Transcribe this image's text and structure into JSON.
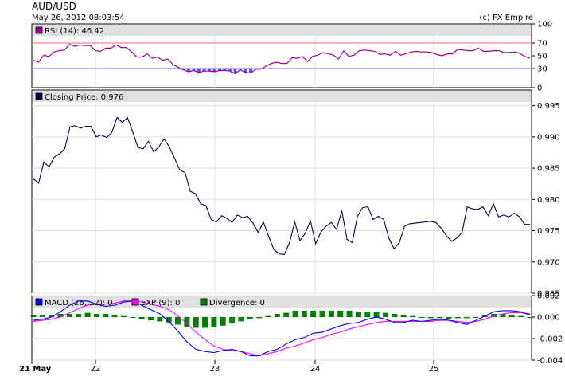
{
  "header": {
    "title": "AUD/USD",
    "timestamp": "May 26, 2012 08:03:54",
    "credit": "(c) FX Empire"
  },
  "colors": {
    "rsi": "#990099",
    "rsi_fill": "#5555ff",
    "level_70": "#ff6666",
    "level_30": "#6666ff",
    "price": "#000044",
    "macd": "#0000ff",
    "exp": "#ff00ff",
    "divergence": "#008000"
  },
  "x_axis": {
    "first_label": "21 May",
    "labels": [
      "22",
      "23",
      "24",
      "25"
    ]
  },
  "chart_data": [
    {
      "type": "line",
      "panel": "rsi",
      "legend": "RSI (14): 46.42",
      "ylim": [
        0,
        100
      ],
      "yticks": [
        "100",
        "70",
        "50",
        "30",
        "0"
      ],
      "levels": [
        70,
        30
      ],
      "series": [
        {
          "name": "RSI (14)",
          "values": [
            43,
            40,
            51,
            49,
            56,
            58,
            59,
            68,
            65,
            67,
            66,
            66,
            58,
            57,
            62,
            62,
            67,
            63,
            63,
            56,
            48,
            48,
            53,
            46,
            48,
            43,
            45,
            36,
            32,
            28,
            25,
            27,
            24,
            26,
            26,
            25,
            27,
            27,
            26,
            22,
            28,
            24,
            23,
            29,
            29,
            34,
            38,
            40,
            38,
            38,
            47,
            46,
            49,
            41,
            49,
            51,
            55,
            53,
            51,
            45,
            58,
            49,
            51,
            58,
            59,
            58,
            57,
            52,
            53,
            51,
            57,
            51,
            53,
            56,
            57,
            56,
            56,
            55,
            52,
            50,
            53,
            53,
            60,
            59,
            58,
            58,
            62,
            57,
            57,
            58,
            58,
            55,
            55,
            56,
            54,
            49,
            46
          ]
        }
      ]
    },
    {
      "type": "line",
      "panel": "price",
      "legend": "Closing Price: 0.976",
      "ylim": [
        0.965,
        0.9975
      ],
      "yticks": [
        "0.995",
        "0.990",
        "0.985",
        "0.980",
        "0.975",
        "0.970",
        "0.965"
      ],
      "series": [
        {
          "name": "Closing Price",
          "values": [
            0.9833,
            0.9826,
            0.986,
            0.9852,
            0.9868,
            0.9873,
            0.9881,
            0.9916,
            0.9918,
            0.9914,
            0.9917,
            0.9917,
            0.99,
            0.9903,
            0.9899,
            0.9907,
            0.9931,
            0.9923,
            0.9931,
            0.9908,
            0.9883,
            0.9881,
            0.9893,
            0.9876,
            0.9884,
            0.9897,
            0.9884,
            0.9866,
            0.9847,
            0.9843,
            0.9813,
            0.9809,
            0.9793,
            0.979,
            0.9768,
            0.9764,
            0.9774,
            0.977,
            0.9763,
            0.9775,
            0.9771,
            0.9773,
            0.9762,
            0.9747,
            0.9764,
            0.9741,
            0.972,
            0.9713,
            0.9712,
            0.9731,
            0.9764,
            0.9734,
            0.9746,
            0.9766,
            0.9729,
            0.9748,
            0.9757,
            0.9763,
            0.9752,
            0.9782,
            0.9736,
            0.9731,
            0.9773,
            0.9787,
            0.9788,
            0.9768,
            0.9773,
            0.9768,
            0.9738,
            0.9721,
            0.9731,
            0.9757,
            0.9761,
            0.9762,
            0.9763,
            0.9764,
            0.9765,
            0.9763,
            0.9754,
            0.9742,
            0.9733,
            0.9738,
            0.9747,
            0.9788,
            0.9785,
            0.9784,
            0.9788,
            0.9774,
            0.9793,
            0.9772,
            0.9775,
            0.9772,
            0.9778,
            0.9772,
            0.976,
            0.976
          ]
        }
      ]
    },
    {
      "type": "line",
      "panel": "macd",
      "legend": [
        "MACD (26, 12): 0",
        "EXP (9): 0",
        "Divergence: 0"
      ],
      "ylim": [
        -0.004,
        0.002
      ],
      "yticks": [
        "0.002",
        "0.000",
        "-0.002",
        "-0.004"
      ],
      "series": [
        {
          "name": "MACD (26, 12)",
          "values": [
            -0.0003,
            -0.0002,
            0.0,
            0.0005,
            0.0011,
            0.0015,
            0.0015,
            0.0012,
            0.001,
            0.0011,
            0.0014,
            0.0015,
            0.0011,
            0.0007,
            0.0003,
            -0.0004,
            -0.0013,
            -0.0023,
            -0.003,
            -0.0032,
            -0.0033,
            -0.0031,
            -0.003,
            -0.0032,
            -0.0036,
            -0.0036,
            -0.0032,
            -0.003,
            -0.0025,
            -0.0021,
            -0.0019,
            -0.0015,
            -0.0014,
            -0.0011,
            -0.0008,
            -0.0006,
            -0.0005,
            -0.0002,
            -0.0,
            -0.0002,
            -0.0005,
            -0.0005,
            -0.0003,
            -0.0004,
            -0.0003,
            -0.0002,
            -0.0003,
            -0.0005,
            -0.0007,
            -0.0003,
            0.0001,
            0.0005,
            0.0006,
            0.0006,
            0.0005,
            0.0002
          ]
        },
        {
          "name": "EXP (9)",
          "values": [
            -0.0004,
            -0.0003,
            -0.0002,
            0.0,
            0.0004,
            0.0008,
            0.0011,
            0.0012,
            0.0012,
            0.0013,
            0.0015,
            0.0016,
            0.0014,
            0.0012,
            0.001,
            0.0007,
            0.0001,
            -0.0006,
            -0.0014,
            -0.0021,
            -0.0027,
            -0.003,
            -0.0031,
            -0.0032,
            -0.0034,
            -0.0036,
            -0.0034,
            -0.0032,
            -0.0029,
            -0.0027,
            -0.0024,
            -0.0021,
            -0.0019,
            -0.0016,
            -0.0014,
            -0.0011,
            -0.0009,
            -0.0007,
            -0.0005,
            -0.0004,
            -0.0004,
            -0.0004,
            -0.0004,
            -0.0004,
            -0.0004,
            -0.0003,
            -0.0003,
            -0.0004,
            -0.0005,
            -0.0004,
            -0.0002,
            0.0001,
            0.0003,
            0.0004,
            0.0004,
            0.0003
          ]
        },
        {
          "name": "Divergence",
          "values": [
            0.0002,
            0.0002,
            0.0002,
            0.0003,
            0.0003,
            0.0003,
            0.0004,
            0.0003,
            0.0003,
            0.0002,
            0.0001,
            0.0,
            -0.0002,
            -0.0003,
            -0.0004,
            -0.0005,
            -0.0007,
            -0.0009,
            -0.001,
            -0.001,
            -0.0009,
            -0.0008,
            -0.0006,
            -0.0004,
            -0.0002,
            -0.0001,
            0.0001,
            0.0003,
            0.0004,
            0.0006,
            0.0006,
            0.0006,
            0.0006,
            0.0006,
            0.0006,
            0.0006,
            0.0005,
            0.0005,
            0.0005,
            0.0004,
            0.0003,
            0.0002,
            0.0001,
            0.0,
            -0.0001,
            -0.0001,
            -0.0002,
            -0.0001,
            -0.0001,
            0.0,
            0.0002,
            0.0003,
            0.0003,
            0.0002,
            0.0001,
            0.0
          ]
        }
      ]
    }
  ]
}
